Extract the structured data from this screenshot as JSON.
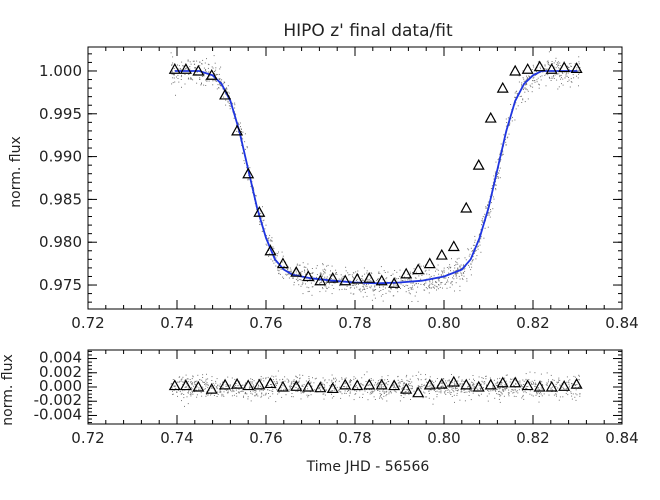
{
  "chart_data": [
    {
      "type": "scatter",
      "title": "HIPO z' final data/fit",
      "xlabel": "",
      "ylabel": "norm. flux",
      "xlim": [
        0.72,
        0.84
      ],
      "ylim": [
        0.9722,
        1.0028
      ],
      "xticks": [
        "0.72",
        "0.74",
        "0.76",
        "0.78",
        "0.80",
        "0.82",
        "0.84"
      ],
      "yticks": [
        "0.975",
        "0.980",
        "0.985",
        "0.990",
        "0.995",
        "1.000"
      ],
      "series": [
        {
          "kind": "binned",
          "marker": "triangle",
          "x": [
            0.7395,
            0.742,
            0.7448,
            0.7478,
            0.7508,
            0.7535,
            0.756,
            0.7585,
            0.761,
            0.7638,
            0.7668,
            0.7695,
            0.7722,
            0.775,
            0.7778,
            0.7805,
            0.7832,
            0.786,
            0.7888,
            0.7915,
            0.7942,
            0.7968,
            0.7995,
            0.8022,
            0.805,
            0.8078,
            0.8105,
            0.8132,
            0.816,
            0.8188,
            0.8215,
            0.8242,
            0.827,
            0.8298
          ],
          "y": [
            1.0002,
            1.0002,
            1.0,
            0.9995,
            0.9972,
            0.993,
            0.988,
            0.9835,
            0.979,
            0.9775,
            0.9765,
            0.976,
            0.9755,
            0.9758,
            0.9755,
            0.9757,
            0.9758,
            0.9755,
            0.9752,
            0.9763,
            0.9768,
            0.9775,
            0.9785,
            0.9795,
            0.984,
            0.989,
            0.9945,
            0.998,
            1.0,
            1.0002,
            1.0005,
            1.0002,
            1.0004,
            1.0003
          ]
        },
        {
          "kind": "model",
          "color": "#1f35e0",
          "x": [
            0.7395,
            0.745,
            0.748,
            0.75,
            0.752,
            0.754,
            0.756,
            0.758,
            0.76,
            0.762,
            0.764,
            0.766,
            0.77,
            0.775,
            0.78,
            0.785,
            0.79,
            0.795,
            0.8,
            0.804,
            0.806,
            0.808,
            0.81,
            0.812,
            0.814,
            0.816,
            0.818,
            0.82,
            0.822,
            0.825,
            0.83
          ],
          "y": [
            1.0,
            1.0,
            0.9995,
            0.9985,
            0.9965,
            0.993,
            0.9885,
            0.984,
            0.9805,
            0.978,
            0.9768,
            0.9762,
            0.9758,
            0.9755,
            0.9753,
            0.9752,
            0.9753,
            0.9755,
            0.976,
            0.9768,
            0.978,
            0.9805,
            0.984,
            0.9885,
            0.993,
            0.9965,
            0.9985,
            0.9995,
            1.0,
            1.0,
            1.0
          ]
        }
      ],
      "raw_scatter": {
        "color": "#777777",
        "x_range": [
          0.7385,
          0.8305
        ],
        "scatter_sigma": 0.0008
      }
    },
    {
      "type": "scatter",
      "title": "",
      "xlabel": "Time JHD - 56566",
      "ylabel": "norm. flux",
      "xlim": [
        0.72,
        0.84
      ],
      "ylim": [
        -0.0052,
        0.0052
      ],
      "xticks": [
        "0.72",
        "0.74",
        "0.76",
        "0.78",
        "0.80",
        "0.82",
        "0.84"
      ],
      "yticks": [
        "-0.004",
        "-0.002",
        "0.000",
        "0.002",
        "0.004"
      ],
      "series": [
        {
          "kind": "residuals",
          "marker": "triangle",
          "x": [
            0.7395,
            0.742,
            0.7448,
            0.7478,
            0.7508,
            0.7535,
            0.756,
            0.7585,
            0.761,
            0.7638,
            0.7668,
            0.7695,
            0.7722,
            0.775,
            0.7778,
            0.7805,
            0.7832,
            0.786,
            0.7888,
            0.7915,
            0.7942,
            0.7968,
            0.7995,
            0.8022,
            0.805,
            0.8078,
            0.8105,
            0.8132,
            0.816,
            0.8188,
            0.8215,
            0.8242,
            0.827,
            0.8298
          ],
          "y": [
            0.0002,
            0.0002,
            0.0,
            -0.0003,
            0.0003,
            0.0004,
            0.0002,
            0.0003,
            0.0005,
            0.0,
            0.0001,
            0.0,
            -0.0001,
            -0.0002,
            0.0003,
            0.0002,
            0.0003,
            0.0003,
            0.0002,
            -0.0003,
            -0.0008,
            0.0003,
            0.0004,
            0.0007,
            0.0003,
            0.0,
            0.0003,
            0.0006,
            0.0006,
            0.0002,
            0.0,
            0.0,
            0.0001,
            0.0004
          ]
        }
      ],
      "raw_scatter": {
        "color": "#777777",
        "x_range": [
          0.7385,
          0.8305
        ],
        "scatter_sigma": 0.0008
      }
    }
  ]
}
